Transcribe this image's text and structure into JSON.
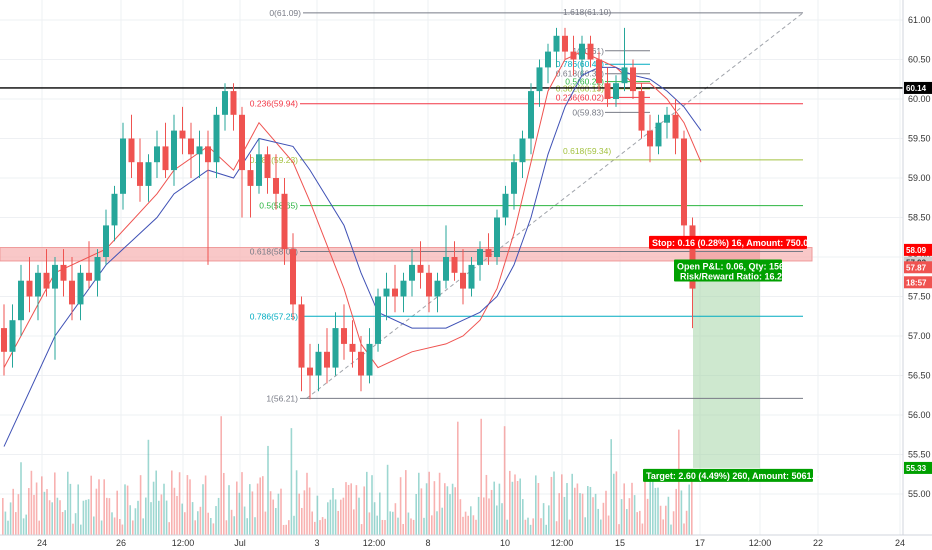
{
  "chart_data": {
    "type": "candlestick",
    "title": "",
    "xlabel": "",
    "ylabel": "",
    "ylim": [
      54.5,
      61.25
    ],
    "grid": true,
    "y_axis_ticks": [
      "61.00",
      "60.50",
      "60.00",
      "59.50",
      "59.00",
      "58.50",
      "58.00",
      "57.50",
      "57.00",
      "56.50",
      "56.00",
      "55.50",
      "55.00"
    ],
    "x_axis_ticks": [
      "24",
      "26",
      "12:00",
      "Jul",
      "3",
      "12:00",
      "8",
      "10",
      "12:00",
      "15",
      "17",
      "12:00",
      "22",
      "24"
    ],
    "price_tags": [
      {
        "label": "60.14",
        "value": 60.14,
        "color": "#000000",
        "text_color": "#ffffff"
      },
      {
        "label": "58.09",
        "value": 58.09,
        "color": "#ff0000",
        "text_color": "#ffffff"
      },
      {
        "label": "57.93",
        "value": 57.93,
        "color": "#cfcfcf",
        "text_color": "#333333"
      },
      {
        "label": "57.87",
        "value": 57.87,
        "color": "#ef5350",
        "text_color": "#ffffff"
      },
      {
        "label": "18:57",
        "value": 57.68,
        "color": "#ef5350",
        "text_color": "#ffffff"
      },
      {
        "label": "55.33",
        "value": 55.33,
        "color": "#00a000",
        "text_color": "#ffffff"
      }
    ],
    "horizontal_line": {
      "value": 60.14,
      "color": "#000000"
    },
    "zone": {
      "low": 57.95,
      "high": 58.12,
      "color": "#f7b5b5"
    },
    "fib_main": {
      "levels": [
        {
          "label": "0(61.09)",
          "value": 61.09,
          "color": "#787b86"
        },
        {
          "label": "0.236(59.94)",
          "value": 59.94,
          "color": "#f23645"
        },
        {
          "label": "0.382(59.23)",
          "value": 59.23,
          "color": "#a3c240"
        },
        {
          "label": "0.5(58.65)",
          "value": 58.65,
          "color": "#2bb541"
        },
        {
          "label": "0.618(58.07)",
          "value": 58.07,
          "color": "#787b86"
        },
        {
          "label": "0.786(57.25)",
          "value": 57.25,
          "color": "#00acc1"
        },
        {
          "label": "1(56.21)",
          "value": 56.21,
          "color": "#787b86"
        }
      ]
    },
    "fib_ext_labels": [
      {
        "label": "1.618(61.10)",
        "value": 61.1,
        "color": "#787b86"
      },
      {
        "label": "0.618(59.34)",
        "value": 59.34,
        "color": "#a3c240"
      }
    ],
    "fib_small": {
      "levels": [
        {
          "label": "1(60.61)",
          "value": 60.61,
          "color": "#787b86"
        },
        {
          "label": "0.786(60.44)",
          "value": 60.44,
          "color": "#00acc1"
        },
        {
          "label": "0.618(60.32)",
          "value": 60.32,
          "color": "#787b86"
        },
        {
          "label": "0.5(60.22)",
          "value": 60.22,
          "color": "#2bb541"
        },
        {
          "label": "0.382(60.13)",
          "value": 60.13,
          "color": "#a3c240"
        },
        {
          "label": "0.236(60.02)",
          "value": 60.02,
          "color": "#f23645"
        },
        {
          "label": "0(59.83)",
          "value": 59.83,
          "color": "#787b86"
        }
      ]
    },
    "trade": {
      "entry": 57.93,
      "stop": 58.09,
      "target": 55.33,
      "stop_label": "Stop: 0.16 (0.28%) 16, Amount: 750.08",
      "pnl_label": "Open P&L: 0.06, Qty: 1562",
      "rr_label": "Risk/Reward Ratio: 16.25",
      "target_label": "Target: 2.60 (4.49%) 260, Amount: 5061.2"
    },
    "series": [
      {
        "name": "",
        "color": "#ef5350",
        "values": [
          [
            0,
            56.6
          ],
          [
            3,
            57.8
          ],
          [
            6,
            58.1
          ],
          [
            9,
            58.8
          ],
          [
            10,
            59.1
          ],
          [
            12,
            59.4
          ],
          [
            13.5,
            59.1
          ],
          [
            15,
            59.7
          ],
          [
            17,
            59.2
          ],
          [
            18,
            58.7
          ],
          [
            20,
            57.6
          ],
          [
            21,
            56.9
          ],
          [
            22,
            56.6
          ],
          [
            24,
            56.8
          ],
          [
            26,
            56.9
          ],
          [
            27,
            57.0
          ],
          [
            28,
            57.2
          ],
          [
            29,
            57.6
          ],
          [
            30,
            58.3
          ],
          [
            31,
            59.2
          ],
          [
            32,
            60.1
          ],
          [
            33,
            60.5
          ],
          [
            34,
            60.6
          ],
          [
            35,
            60.5
          ],
          [
            36,
            60.4
          ],
          [
            37,
            60.2
          ],
          [
            38,
            60.2
          ],
          [
            39,
            60.0
          ],
          [
            40,
            59.7
          ],
          [
            41,
            59.2
          ]
        ]
      },
      {
        "name": "",
        "color": "#3f51b5",
        "values": [
          [
            0,
            55.6
          ],
          [
            3,
            57.0
          ],
          [
            6,
            57.9
          ],
          [
            9,
            58.5
          ],
          [
            10,
            58.8
          ],
          [
            12,
            59.1
          ],
          [
            13.5,
            59.0
          ],
          [
            15,
            59.5
          ],
          [
            17,
            59.4
          ],
          [
            18,
            59.1
          ],
          [
            20,
            58.4
          ],
          [
            21,
            57.8
          ],
          [
            22,
            57.3
          ],
          [
            24,
            57.1
          ],
          [
            26,
            57.1
          ],
          [
            27,
            57.2
          ],
          [
            28,
            57.3
          ],
          [
            29,
            57.5
          ],
          [
            30,
            57.9
          ],
          [
            31,
            58.5
          ],
          [
            32,
            59.3
          ],
          [
            33,
            59.9
          ],
          [
            34,
            60.3
          ],
          [
            35,
            60.4
          ],
          [
            36,
            60.4
          ],
          [
            37,
            60.3
          ],
          [
            38,
            60.25
          ],
          [
            39,
            60.1
          ],
          [
            40,
            59.9
          ],
          [
            41,
            59.6
          ]
        ]
      }
    ],
    "candles": [
      {
        "x": 0,
        "o": 57.1,
        "h": 57.4,
        "l": 56.5,
        "c": 56.8
      },
      {
        "x": 0.5,
        "o": 56.8,
        "h": 57.4,
        "l": 56.6,
        "c": 57.2
      },
      {
        "x": 1,
        "o": 57.2,
        "h": 57.9,
        "l": 57.0,
        "c": 57.7
      },
      {
        "x": 1.5,
        "o": 57.7,
        "h": 58.0,
        "l": 57.3,
        "c": 57.5
      },
      {
        "x": 2,
        "o": 57.5,
        "h": 57.9,
        "l": 57.2,
        "c": 57.8
      },
      {
        "x": 2.5,
        "o": 57.8,
        "h": 58.1,
        "l": 57.5,
        "c": 57.6
      },
      {
        "x": 3,
        "o": 57.6,
        "h": 58.0,
        "l": 56.7,
        "c": 57.9
      },
      {
        "x": 3.5,
        "o": 57.9,
        "h": 58.1,
        "l": 57.5,
        "c": 57.7
      },
      {
        "x": 4,
        "o": 57.7,
        "h": 58.0,
        "l": 57.2,
        "c": 57.4
      },
      {
        "x": 4.5,
        "o": 57.4,
        "h": 57.9,
        "l": 57.2,
        "c": 57.8
      },
      {
        "x": 5,
        "o": 57.8,
        "h": 58.2,
        "l": 57.6,
        "c": 57.7
      },
      {
        "x": 5.5,
        "o": 57.7,
        "h": 58.1,
        "l": 57.5,
        "c": 58.0
      },
      {
        "x": 6,
        "o": 58.0,
        "h": 58.6,
        "l": 57.9,
        "c": 58.4
      },
      {
        "x": 6.5,
        "o": 58.4,
        "h": 58.9,
        "l": 58.2,
        "c": 58.8
      },
      {
        "x": 7,
        "o": 58.8,
        "h": 59.7,
        "l": 58.6,
        "c": 59.5
      },
      {
        "x": 7.5,
        "o": 59.5,
        "h": 59.8,
        "l": 59.0,
        "c": 59.2
      },
      {
        "x": 8,
        "o": 59.2,
        "h": 59.5,
        "l": 58.7,
        "c": 58.9
      },
      {
        "x": 8.5,
        "o": 58.9,
        "h": 59.3,
        "l": 58.7,
        "c": 59.2
      },
      {
        "x": 9,
        "o": 59.2,
        "h": 59.6,
        "l": 59.0,
        "c": 59.4
      },
      {
        "x": 9.5,
        "o": 59.4,
        "h": 59.7,
        "l": 59.0,
        "c": 59.1
      },
      {
        "x": 10,
        "o": 59.1,
        "h": 59.8,
        "l": 58.9,
        "c": 59.6
      },
      {
        "x": 10.5,
        "o": 59.6,
        "h": 59.9,
        "l": 59.3,
        "c": 59.5
      },
      {
        "x": 11,
        "o": 59.5,
        "h": 59.7,
        "l": 59.0,
        "c": 59.3
      },
      {
        "x": 11.5,
        "o": 59.3,
        "h": 59.6,
        "l": 59.0,
        "c": 59.4
      },
      {
        "x": 12,
        "o": 59.4,
        "h": 59.6,
        "l": 57.9,
        "c": 59.2
      },
      {
        "x": 12.5,
        "o": 59.2,
        "h": 59.9,
        "l": 59.0,
        "c": 59.8
      },
      {
        "x": 13,
        "o": 59.8,
        "h": 60.2,
        "l": 59.6,
        "c": 60.1
      },
      {
        "x": 13.5,
        "o": 60.1,
        "h": 60.2,
        "l": 59.6,
        "c": 59.8
      },
      {
        "x": 14,
        "o": 59.8,
        "h": 59.9,
        "l": 58.5,
        "c": 59.1
      },
      {
        "x": 14.5,
        "o": 59.1,
        "h": 59.3,
        "l": 58.5,
        "c": 58.9
      },
      {
        "x": 15,
        "o": 58.9,
        "h": 59.5,
        "l": 58.8,
        "c": 59.3
      },
      {
        "x": 15.5,
        "o": 59.3,
        "h": 59.4,
        "l": 58.8,
        "c": 59.0
      },
      {
        "x": 16,
        "o": 59.0,
        "h": 59.3,
        "l": 58.6,
        "c": 58.8
      },
      {
        "x": 16.5,
        "o": 58.8,
        "h": 59.0,
        "l": 57.9,
        "c": 58.1
      },
      {
        "x": 17,
        "o": 58.1,
        "h": 58.3,
        "l": 57.2,
        "c": 57.4
      },
      {
        "x": 17.5,
        "o": 57.4,
        "h": 57.5,
        "l": 56.3,
        "c": 56.6
      },
      {
        "x": 18,
        "o": 56.6,
        "h": 56.9,
        "l": 56.2,
        "c": 56.5
      },
      {
        "x": 18.5,
        "o": 56.5,
        "h": 56.9,
        "l": 56.3,
        "c": 56.8
      },
      {
        "x": 19,
        "o": 56.8,
        "h": 57.1,
        "l": 56.4,
        "c": 56.6
      },
      {
        "x": 19.5,
        "o": 56.6,
        "h": 57.3,
        "l": 56.5,
        "c": 57.1
      },
      {
        "x": 20,
        "o": 57.1,
        "h": 57.4,
        "l": 56.7,
        "c": 56.9
      },
      {
        "x": 20.5,
        "o": 56.9,
        "h": 57.2,
        "l": 56.6,
        "c": 56.8
      },
      {
        "x": 21,
        "o": 56.8,
        "h": 57.0,
        "l": 56.3,
        "c": 56.5
      },
      {
        "x": 21.5,
        "o": 56.5,
        "h": 57.1,
        "l": 56.4,
        "c": 56.9
      },
      {
        "x": 22,
        "o": 56.9,
        "h": 57.6,
        "l": 56.8,
        "c": 57.5
      },
      {
        "x": 22.5,
        "o": 57.5,
        "h": 57.8,
        "l": 57.2,
        "c": 57.6
      },
      {
        "x": 23,
        "o": 57.6,
        "h": 57.9,
        "l": 57.3,
        "c": 57.5
      },
      {
        "x": 23.5,
        "o": 57.5,
        "h": 57.8,
        "l": 57.3,
        "c": 57.7
      },
      {
        "x": 24,
        "o": 57.7,
        "h": 58.1,
        "l": 57.5,
        "c": 57.9
      },
      {
        "x": 24.5,
        "o": 57.9,
        "h": 58.2,
        "l": 57.6,
        "c": 57.8
      },
      {
        "x": 25,
        "o": 57.8,
        "h": 57.9,
        "l": 57.3,
        "c": 57.5
      },
      {
        "x": 25.5,
        "o": 57.5,
        "h": 57.8,
        "l": 57.3,
        "c": 57.7
      },
      {
        "x": 26,
        "o": 57.7,
        "h": 58.4,
        "l": 57.6,
        "c": 58.0
      },
      {
        "x": 26.5,
        "o": 58.0,
        "h": 58.2,
        "l": 57.7,
        "c": 57.8
      },
      {
        "x": 27,
        "o": 57.8,
        "h": 58.1,
        "l": 57.4,
        "c": 57.6
      },
      {
        "x": 27.5,
        "o": 57.6,
        "h": 58.0,
        "l": 57.5,
        "c": 57.9
      },
      {
        "x": 28,
        "o": 57.9,
        "h": 58.2,
        "l": 57.7,
        "c": 58.1
      },
      {
        "x": 28.5,
        "o": 58.1,
        "h": 58.3,
        "l": 57.9,
        "c": 58.0
      },
      {
        "x": 29,
        "o": 58.0,
        "h": 58.6,
        "l": 57.9,
        "c": 58.5
      },
      {
        "x": 29.5,
        "o": 58.5,
        "h": 58.9,
        "l": 58.4,
        "c": 58.8
      },
      {
        "x": 30,
        "o": 58.8,
        "h": 59.3,
        "l": 58.6,
        "c": 59.2
      },
      {
        "x": 30.5,
        "o": 59.2,
        "h": 59.6,
        "l": 59.0,
        "c": 59.5
      },
      {
        "x": 31,
        "o": 59.5,
        "h": 60.2,
        "l": 59.3,
        "c": 60.1
      },
      {
        "x": 31.5,
        "o": 60.1,
        "h": 60.5,
        "l": 59.9,
        "c": 60.4
      },
      {
        "x": 32,
        "o": 60.4,
        "h": 60.7,
        "l": 60.2,
        "c": 60.6
      },
      {
        "x": 32.5,
        "o": 60.6,
        "h": 60.9,
        "l": 60.4,
        "c": 60.8
      },
      {
        "x": 33,
        "o": 60.8,
        "h": 60.9,
        "l": 60.5,
        "c": 60.6
      },
      {
        "x": 33.5,
        "o": 60.6,
        "h": 60.8,
        "l": 60.3,
        "c": 60.5
      },
      {
        "x": 34,
        "o": 60.5,
        "h": 60.8,
        "l": 60.3,
        "c": 60.7
      },
      {
        "x": 34.5,
        "o": 60.7,
        "h": 60.8,
        "l": 60.4,
        "c": 60.5
      },
      {
        "x": 35,
        "o": 60.5,
        "h": 60.6,
        "l": 60.1,
        "c": 60.2
      },
      {
        "x": 35.5,
        "o": 60.2,
        "h": 60.4,
        "l": 59.9,
        "c": 60.0
      },
      {
        "x": 36,
        "o": 60.0,
        "h": 60.3,
        "l": 59.9,
        "c": 60.2
      },
      {
        "x": 36.5,
        "o": 60.2,
        "h": 60.9,
        "l": 60.1,
        "c": 60.4
      },
      {
        "x": 37,
        "o": 60.4,
        "h": 60.5,
        "l": 60.0,
        "c": 60.1
      },
      {
        "x": 37.5,
        "o": 60.1,
        "h": 60.2,
        "l": 59.5,
        "c": 59.6
      },
      {
        "x": 38,
        "o": 59.6,
        "h": 59.8,
        "l": 59.2,
        "c": 59.4
      },
      {
        "x": 38.5,
        "o": 59.4,
        "h": 59.8,
        "l": 59.3,
        "c": 59.7
      },
      {
        "x": 39,
        "o": 59.7,
        "h": 59.9,
        "l": 59.5,
        "c": 59.8
      },
      {
        "x": 39.5,
        "o": 59.8,
        "h": 60.0,
        "l": 59.3,
        "c": 59.5
      },
      {
        "x": 40,
        "o": 59.5,
        "h": 59.6,
        "l": 58.2,
        "c": 58.4
      },
      {
        "x": 40.5,
        "o": 58.4,
        "h": 58.5,
        "l": 57.1,
        "c": 57.6
      }
    ]
  }
}
